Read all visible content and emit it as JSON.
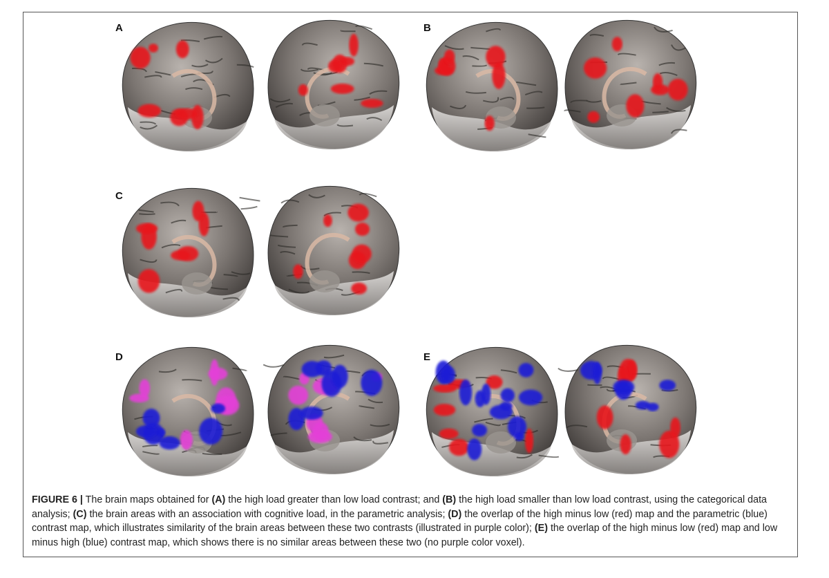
{
  "figure": {
    "panels": [
      {
        "label": "A"
      },
      {
        "label": "B"
      },
      {
        "label": "C"
      },
      {
        "label": "D"
      },
      {
        "label": "E"
      }
    ],
    "caption": {
      "label": "FIGURE 6 |",
      "intro": "The brain maps obtained for",
      "items": [
        {
          "marker": "(A)",
          "text": "the high load greater than low load contrast; and"
        },
        {
          "marker": "(B)",
          "text": "the high load smaller than low load contrast, using the categorical data analysis;"
        },
        {
          "marker": "(C)",
          "text": "the brain areas with an association with cognitive load, in the parametric analysis;"
        },
        {
          "marker": "(D)",
          "text": "the overlap of the high minus low (red) map and the parametric (blue) contrast map, which illustrates similarity of the brain areas between these two contrasts (illustrated in purple color);"
        },
        {
          "marker": "(E)",
          "text": "the overlap of the high minus low (red) map and low minus high (blue) contrast map, which shows there is no similar areas between these two (no purple color voxel)."
        }
      ]
    }
  }
}
